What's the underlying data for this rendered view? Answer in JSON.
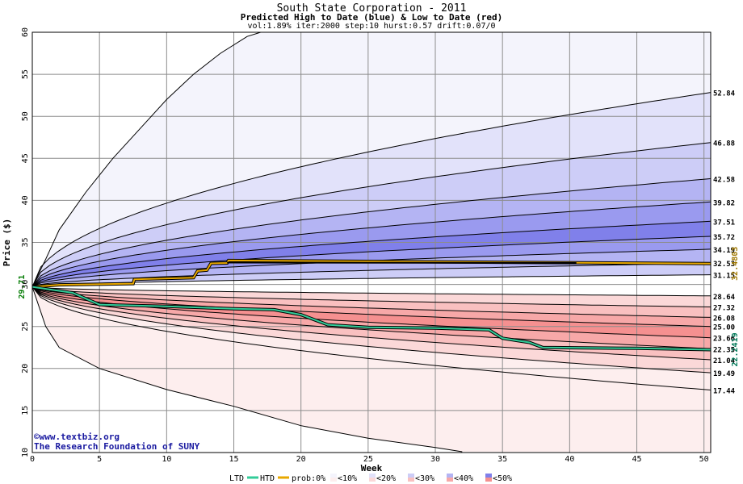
{
  "header": {
    "title": "South State Corporation - 2011",
    "subtitle": "Predicted High to Date (blue) &  Low to Date (red)",
    "params": "vol:1.89% iter:2000 step:10 hurst:0.57 drift:0.07/0"
  },
  "credit": {
    "copyright": "©www.textbiz.org",
    "org": "The Research Foundation of SUNY"
  },
  "legend": {
    "ltd": "LTD",
    "htd": "HTD",
    "prob": "prob:0%",
    "lt10": "<10%",
    "lt20": "<20%",
    "lt30": "<30%",
    "lt40": "<40%",
    "lt50": "<50%"
  },
  "chart_data": {
    "type": "area",
    "title": "South State Corporation - 2011",
    "xlabel": "Week",
    "ylabel": "Price ($)",
    "xlim": [
      0,
      50.5
    ],
    "ylim": [
      10,
      60
    ],
    "x_ticks": [
      0,
      5,
      10,
      15,
      20,
      25,
      30,
      35,
      40,
      45,
      50
    ],
    "y_ticks": [
      10,
      15,
      20,
      25,
      30,
      35,
      40,
      45,
      50,
      55,
      60
    ],
    "grid": true,
    "start_price": 29.71,
    "start_label": "29.71",
    "high_quantiles": [
      {
        "label": "52.84",
        "end": 52.84
      },
      {
        "label": "46.88",
        "end": 46.88
      },
      {
        "label": "42.58",
        "end": 42.58
      },
      {
        "label": "39.82",
        "end": 39.82
      },
      {
        "label": "37.51",
        "end": 37.51
      },
      {
        "label": "35.72",
        "end": 35.72
      },
      {
        "label": "34.19",
        "end": 34.19
      },
      {
        "label": "32.53",
        "end": 32.53
      },
      {
        "label": "31.15",
        "end": 31.15
      }
    ],
    "low_quantiles": [
      {
        "label": "28.64",
        "end": 28.64
      },
      {
        "label": "27.32",
        "end": 27.32
      },
      {
        "label": "26.08",
        "end": 26.08
      },
      {
        "label": "25.00",
        "end": 25.0
      },
      {
        "label": "23.66",
        "end": 23.66
      },
      {
        "label": "22.35",
        "end": 22.35
      },
      {
        "label": "21.04",
        "end": 21.04
      },
      {
        "label": "19.49",
        "end": 19.49
      },
      {
        "label": "17.44",
        "end": 17.44
      }
    ],
    "series": [
      {
        "name": "HTD",
        "color": "#e8a800",
        "points": [
          [
            0,
            29.71
          ],
          [
            2,
            29.95
          ],
          [
            7.5,
            30.1
          ],
          [
            7.6,
            30.6
          ],
          [
            12,
            30.8
          ],
          [
            12.3,
            31.6
          ],
          [
            13,
            31.7
          ],
          [
            13.3,
            32.5
          ],
          [
            14.5,
            32.55
          ],
          [
            14.6,
            32.85
          ],
          [
            50.5,
            32.48
          ]
        ],
        "end_label": "32.4803"
      },
      {
        "name": "LTD",
        "color": "#33cc99",
        "points": [
          [
            0,
            29.71
          ],
          [
            3,
            29.0
          ],
          [
            4,
            28.3
          ],
          [
            5,
            27.6
          ],
          [
            10,
            27.4
          ],
          [
            15,
            27.1
          ],
          [
            18,
            27.0
          ],
          [
            20,
            26.4
          ],
          [
            22,
            25.2
          ],
          [
            25,
            24.9
          ],
          [
            30,
            24.8
          ],
          [
            34,
            24.6
          ],
          [
            35,
            23.6
          ],
          [
            37,
            23.1
          ],
          [
            38,
            22.5
          ],
          [
            45,
            22.4
          ],
          [
            50.5,
            22.24
          ]
        ],
        "end_label": "22.2419"
      },
      {
        "name": "HTD-black",
        "color": "#000000",
        "points": [
          [
            14.5,
            32.6
          ],
          [
            40.5,
            32.55
          ]
        ]
      }
    ],
    "envelope": {
      "upper": [
        [
          0,
          29.71
        ],
        [
          1,
          33
        ],
        [
          2,
          36.5
        ],
        [
          4,
          41
        ],
        [
          6,
          45
        ],
        [
          8,
          48.5
        ],
        [
          10,
          52
        ],
        [
          12,
          55
        ],
        [
          14,
          57.5
        ],
        [
          16,
          59.5
        ],
        [
          17,
          60
        ]
      ],
      "lower": [
        [
          0,
          29.71
        ],
        [
          1,
          25
        ],
        [
          2,
          22.5
        ],
        [
          5,
          20
        ],
        [
          10,
          17.5
        ],
        [
          15,
          15.5
        ],
        [
          20,
          13.2
        ],
        [
          25,
          11.7
        ],
        [
          30,
          10.6
        ],
        [
          32,
          10.1
        ]
      ]
    },
    "band_colors": {
      "high": [
        "#f4f4fc",
        "#e2e2fa",
        "#cdcdf7",
        "#b4b4f3",
        "#9a9aef",
        "#8080ea",
        "#9a9aef",
        "#b4b4f3",
        "#cdcdf7"
      ],
      "low": [
        "#fdeeee",
        "#fbd8d8",
        "#f9c0c0",
        "#f7a8a8",
        "#f59090",
        "#f7a8a8",
        "#f9c0c0",
        "#fbd8d8",
        "#fdeeee"
      ]
    }
  }
}
